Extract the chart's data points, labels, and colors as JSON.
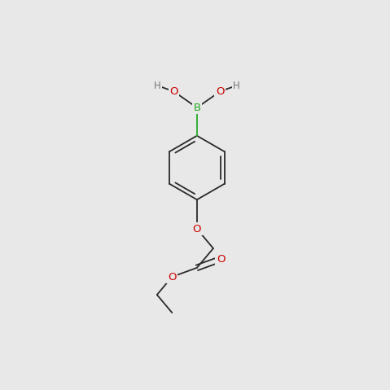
{
  "bg_color": "#e8e8e8",
  "bond_color": "#2a2a2a",
  "bond_width": 1.3,
  "atom_colors": {
    "B": "#22aa22",
    "O": "#cc0000",
    "H": "#777777",
    "C": "#2a2a2a"
  },
  "font_size_atom": 9.5,
  "font_size_h": 8.5,
  "fig_size": [
    4.79,
    4.79
  ],
  "dpi": 100,
  "xlim": [
    0,
    10
  ],
  "ylim": [
    0,
    10
  ]
}
